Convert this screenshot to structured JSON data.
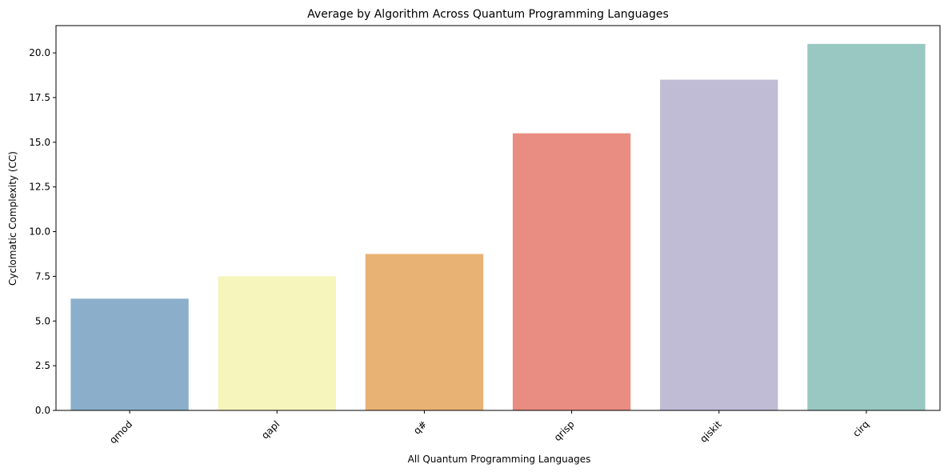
{
  "chart_data": {
    "type": "bar",
    "title": "Average by Algorithm Across Quantum Programming Languages",
    "xlabel": "All Quantum Programming Languages",
    "ylabel": "Cyclomatic Complexity (CC)",
    "categories": [
      "qmod",
      "qapl",
      "q#",
      "qrisp",
      "qiskit",
      "cirq"
    ],
    "values": [
      6.25,
      7.5,
      8.75,
      15.5,
      18.5,
      20.5
    ],
    "colors": [
      "#8bafca",
      "#f6f5bb",
      "#e8b274",
      "#e98c82",
      "#c0bcd5",
      "#98c8c1"
    ],
    "ylim": [
      0,
      21.525
    ],
    "yticks": [
      "0.0",
      "2.5",
      "5.0",
      "7.5",
      "10.0",
      "12.5",
      "15.0",
      "17.5",
      "20.0"
    ],
    "grid": false,
    "legend": "none",
    "xtick_rotation": 45
  }
}
